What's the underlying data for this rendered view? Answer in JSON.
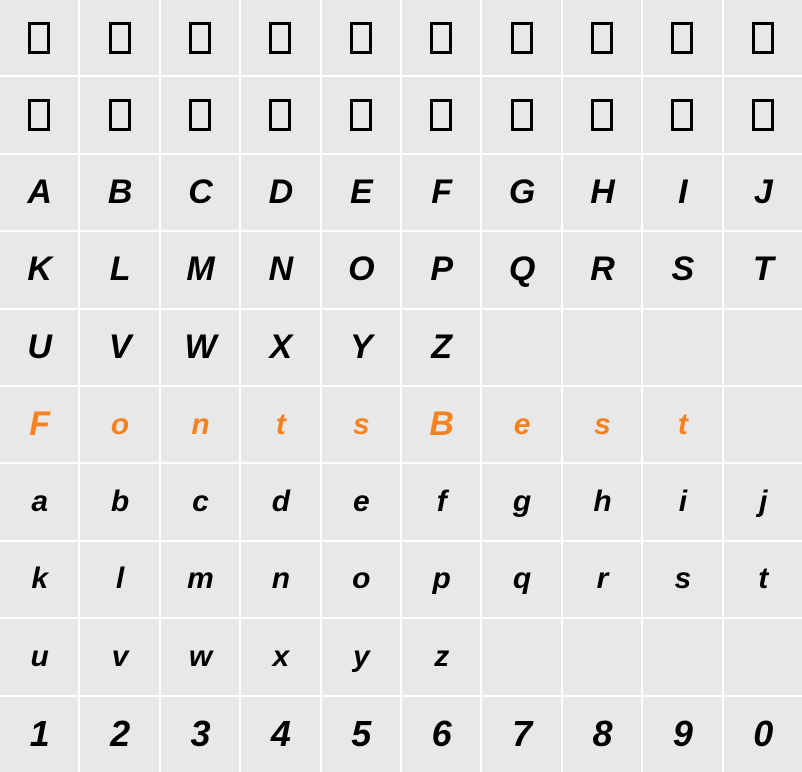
{
  "grid": {
    "cols": 10,
    "rows": 10,
    "background_color": "#e8e8e8",
    "grid_line_color": "#ffffff",
    "text_color": "#000000",
    "accent_color": "#f58220",
    "font_style": "italic",
    "font_weight": "bold",
    "cells": [
      {
        "type": "tofu"
      },
      {
        "type": "tofu"
      },
      {
        "type": "tofu"
      },
      {
        "type": "tofu"
      },
      {
        "type": "tofu"
      },
      {
        "type": "tofu"
      },
      {
        "type": "tofu"
      },
      {
        "type": "tofu"
      },
      {
        "type": "tofu"
      },
      {
        "type": "tofu"
      },
      {
        "type": "tofu"
      },
      {
        "type": "tofu"
      },
      {
        "type": "tofu"
      },
      {
        "type": "tofu"
      },
      {
        "type": "tofu"
      },
      {
        "type": "tofu"
      },
      {
        "type": "tofu"
      },
      {
        "type": "tofu"
      },
      {
        "type": "tofu"
      },
      {
        "type": "tofu"
      },
      {
        "type": "char",
        "value": "A"
      },
      {
        "type": "char",
        "value": "B"
      },
      {
        "type": "char",
        "value": "C"
      },
      {
        "type": "char",
        "value": "D"
      },
      {
        "type": "char",
        "value": "E"
      },
      {
        "type": "char",
        "value": "F"
      },
      {
        "type": "char",
        "value": "G"
      },
      {
        "type": "char",
        "value": "H"
      },
      {
        "type": "char",
        "value": "I"
      },
      {
        "type": "char",
        "value": "J"
      },
      {
        "type": "char",
        "value": "K"
      },
      {
        "type": "char",
        "value": "L"
      },
      {
        "type": "char",
        "value": "M"
      },
      {
        "type": "char",
        "value": "N"
      },
      {
        "type": "char",
        "value": "O"
      },
      {
        "type": "char",
        "value": "P"
      },
      {
        "type": "char",
        "value": "Q"
      },
      {
        "type": "char",
        "value": "R"
      },
      {
        "type": "char",
        "value": "S"
      },
      {
        "type": "char",
        "value": "T"
      },
      {
        "type": "char",
        "value": "U"
      },
      {
        "type": "char",
        "value": "V"
      },
      {
        "type": "char",
        "value": "W"
      },
      {
        "type": "char",
        "value": "X"
      },
      {
        "type": "char",
        "value": "Y"
      },
      {
        "type": "char",
        "value": "Z"
      },
      {
        "type": "empty"
      },
      {
        "type": "empty"
      },
      {
        "type": "empty"
      },
      {
        "type": "empty"
      },
      {
        "type": "char",
        "value": "F",
        "orange": true
      },
      {
        "type": "char",
        "value": "o",
        "orange": true,
        "lowercase": true
      },
      {
        "type": "char",
        "value": "n",
        "orange": true,
        "lowercase": true
      },
      {
        "type": "char",
        "value": "t",
        "orange": true,
        "lowercase": true
      },
      {
        "type": "char",
        "value": "s",
        "orange": true,
        "lowercase": true
      },
      {
        "type": "char",
        "value": "B",
        "orange": true
      },
      {
        "type": "char",
        "value": "e",
        "orange": true,
        "lowercase": true
      },
      {
        "type": "char",
        "value": "s",
        "orange": true,
        "lowercase": true
      },
      {
        "type": "char",
        "value": "t",
        "orange": true,
        "lowercase": true
      },
      {
        "type": "empty"
      },
      {
        "type": "char",
        "value": "a",
        "lowercase": true
      },
      {
        "type": "char",
        "value": "b",
        "lowercase": true
      },
      {
        "type": "char",
        "value": "c",
        "lowercase": true
      },
      {
        "type": "char",
        "value": "d",
        "lowercase": true
      },
      {
        "type": "char",
        "value": "e",
        "lowercase": true
      },
      {
        "type": "char",
        "value": "f",
        "lowercase": true
      },
      {
        "type": "char",
        "value": "g",
        "lowercase": true
      },
      {
        "type": "char",
        "value": "h",
        "lowercase": true
      },
      {
        "type": "char",
        "value": "i",
        "lowercase": true
      },
      {
        "type": "char",
        "value": "j",
        "lowercase": true
      },
      {
        "type": "char",
        "value": "k",
        "lowercase": true
      },
      {
        "type": "char",
        "value": "l",
        "lowercase": true
      },
      {
        "type": "char",
        "value": "m",
        "lowercase": true
      },
      {
        "type": "char",
        "value": "n",
        "lowercase": true
      },
      {
        "type": "char",
        "value": "o",
        "lowercase": true
      },
      {
        "type": "char",
        "value": "p",
        "lowercase": true
      },
      {
        "type": "char",
        "value": "q",
        "lowercase": true
      },
      {
        "type": "char",
        "value": "r",
        "lowercase": true
      },
      {
        "type": "char",
        "value": "s",
        "lowercase": true
      },
      {
        "type": "char",
        "value": "t",
        "lowercase": true
      },
      {
        "type": "char",
        "value": "u",
        "lowercase": true
      },
      {
        "type": "char",
        "value": "v",
        "lowercase": true
      },
      {
        "type": "char",
        "value": "w",
        "lowercase": true
      },
      {
        "type": "char",
        "value": "x",
        "lowercase": true
      },
      {
        "type": "char",
        "value": "y",
        "lowercase": true
      },
      {
        "type": "char",
        "value": "z",
        "lowercase": true
      },
      {
        "type": "empty"
      },
      {
        "type": "empty"
      },
      {
        "type": "empty"
      },
      {
        "type": "empty"
      },
      {
        "type": "char",
        "value": "1",
        "digits": true
      },
      {
        "type": "char",
        "value": "2",
        "digits": true
      },
      {
        "type": "char",
        "value": "3",
        "digits": true
      },
      {
        "type": "char",
        "value": "4",
        "digits": true
      },
      {
        "type": "char",
        "value": "5",
        "digits": true
      },
      {
        "type": "char",
        "value": "6",
        "digits": true
      },
      {
        "type": "char",
        "value": "7",
        "digits": true
      },
      {
        "type": "char",
        "value": "8",
        "digits": true
      },
      {
        "type": "char",
        "value": "9",
        "digits": true
      },
      {
        "type": "char",
        "value": "0",
        "digits": true
      }
    ]
  }
}
